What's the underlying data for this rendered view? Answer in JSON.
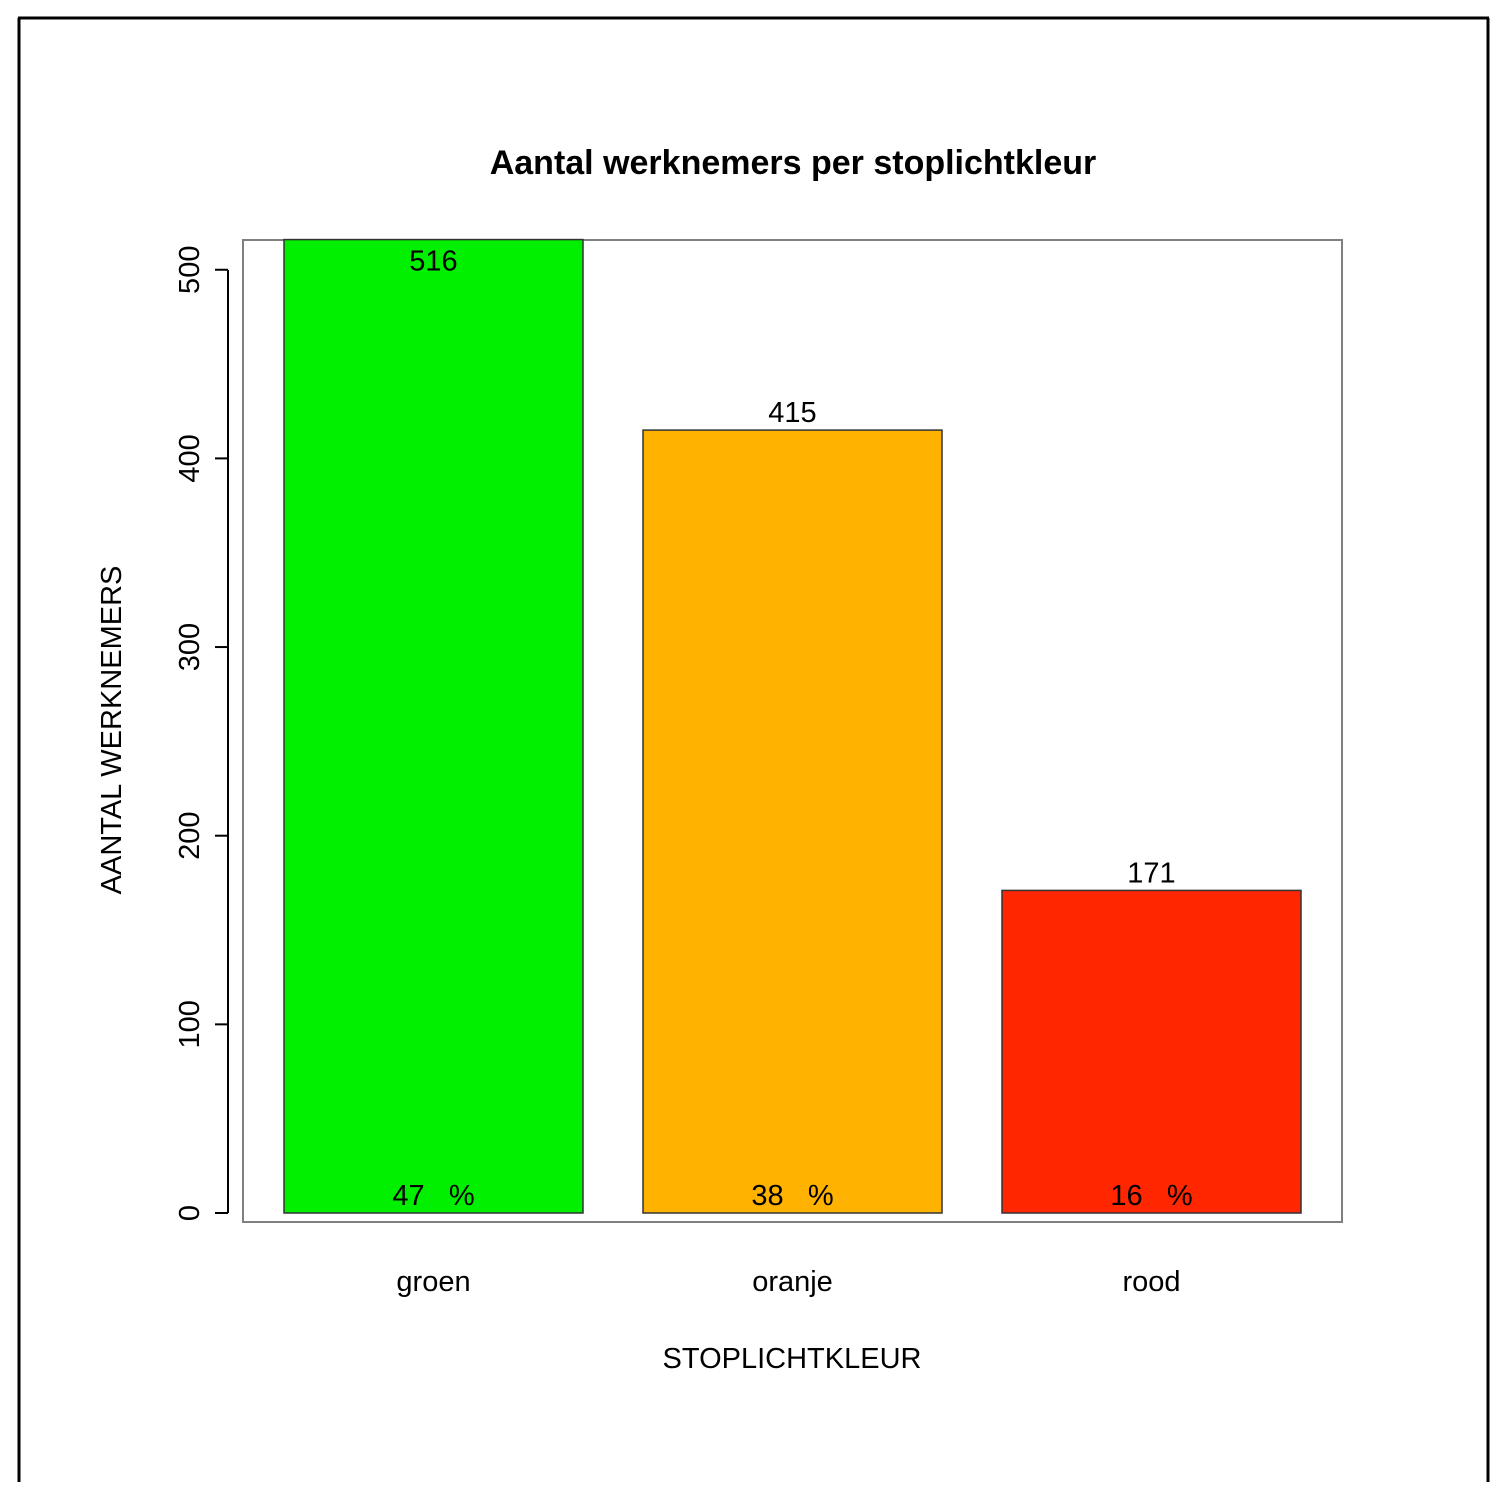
{
  "chart_data": {
    "type": "bar",
    "title": "Aantal werknemers per stoplichtkleur",
    "xlabel": "STOPLICHTKLEUR",
    "ylabel": "AANTAL WERKNEMERS",
    "categories": [
      "groen",
      "oranje",
      "rood"
    ],
    "values": [
      516,
      415,
      171
    ],
    "value_labels": [
      "516",
      "415",
      "171"
    ],
    "percent_labels": [
      "47   %",
      "38   %",
      "16   %"
    ],
    "colors": [
      "#00f000",
      "#ffb300",
      "#ff2600"
    ],
    "ylim": [
      0,
      516
    ],
    "yticks": [
      0,
      100,
      200,
      300,
      400,
      500
    ],
    "ytick_labels": [
      "0",
      "100",
      "200",
      "300",
      "400",
      "500"
    ],
    "grid": false,
    "legend": "none"
  }
}
